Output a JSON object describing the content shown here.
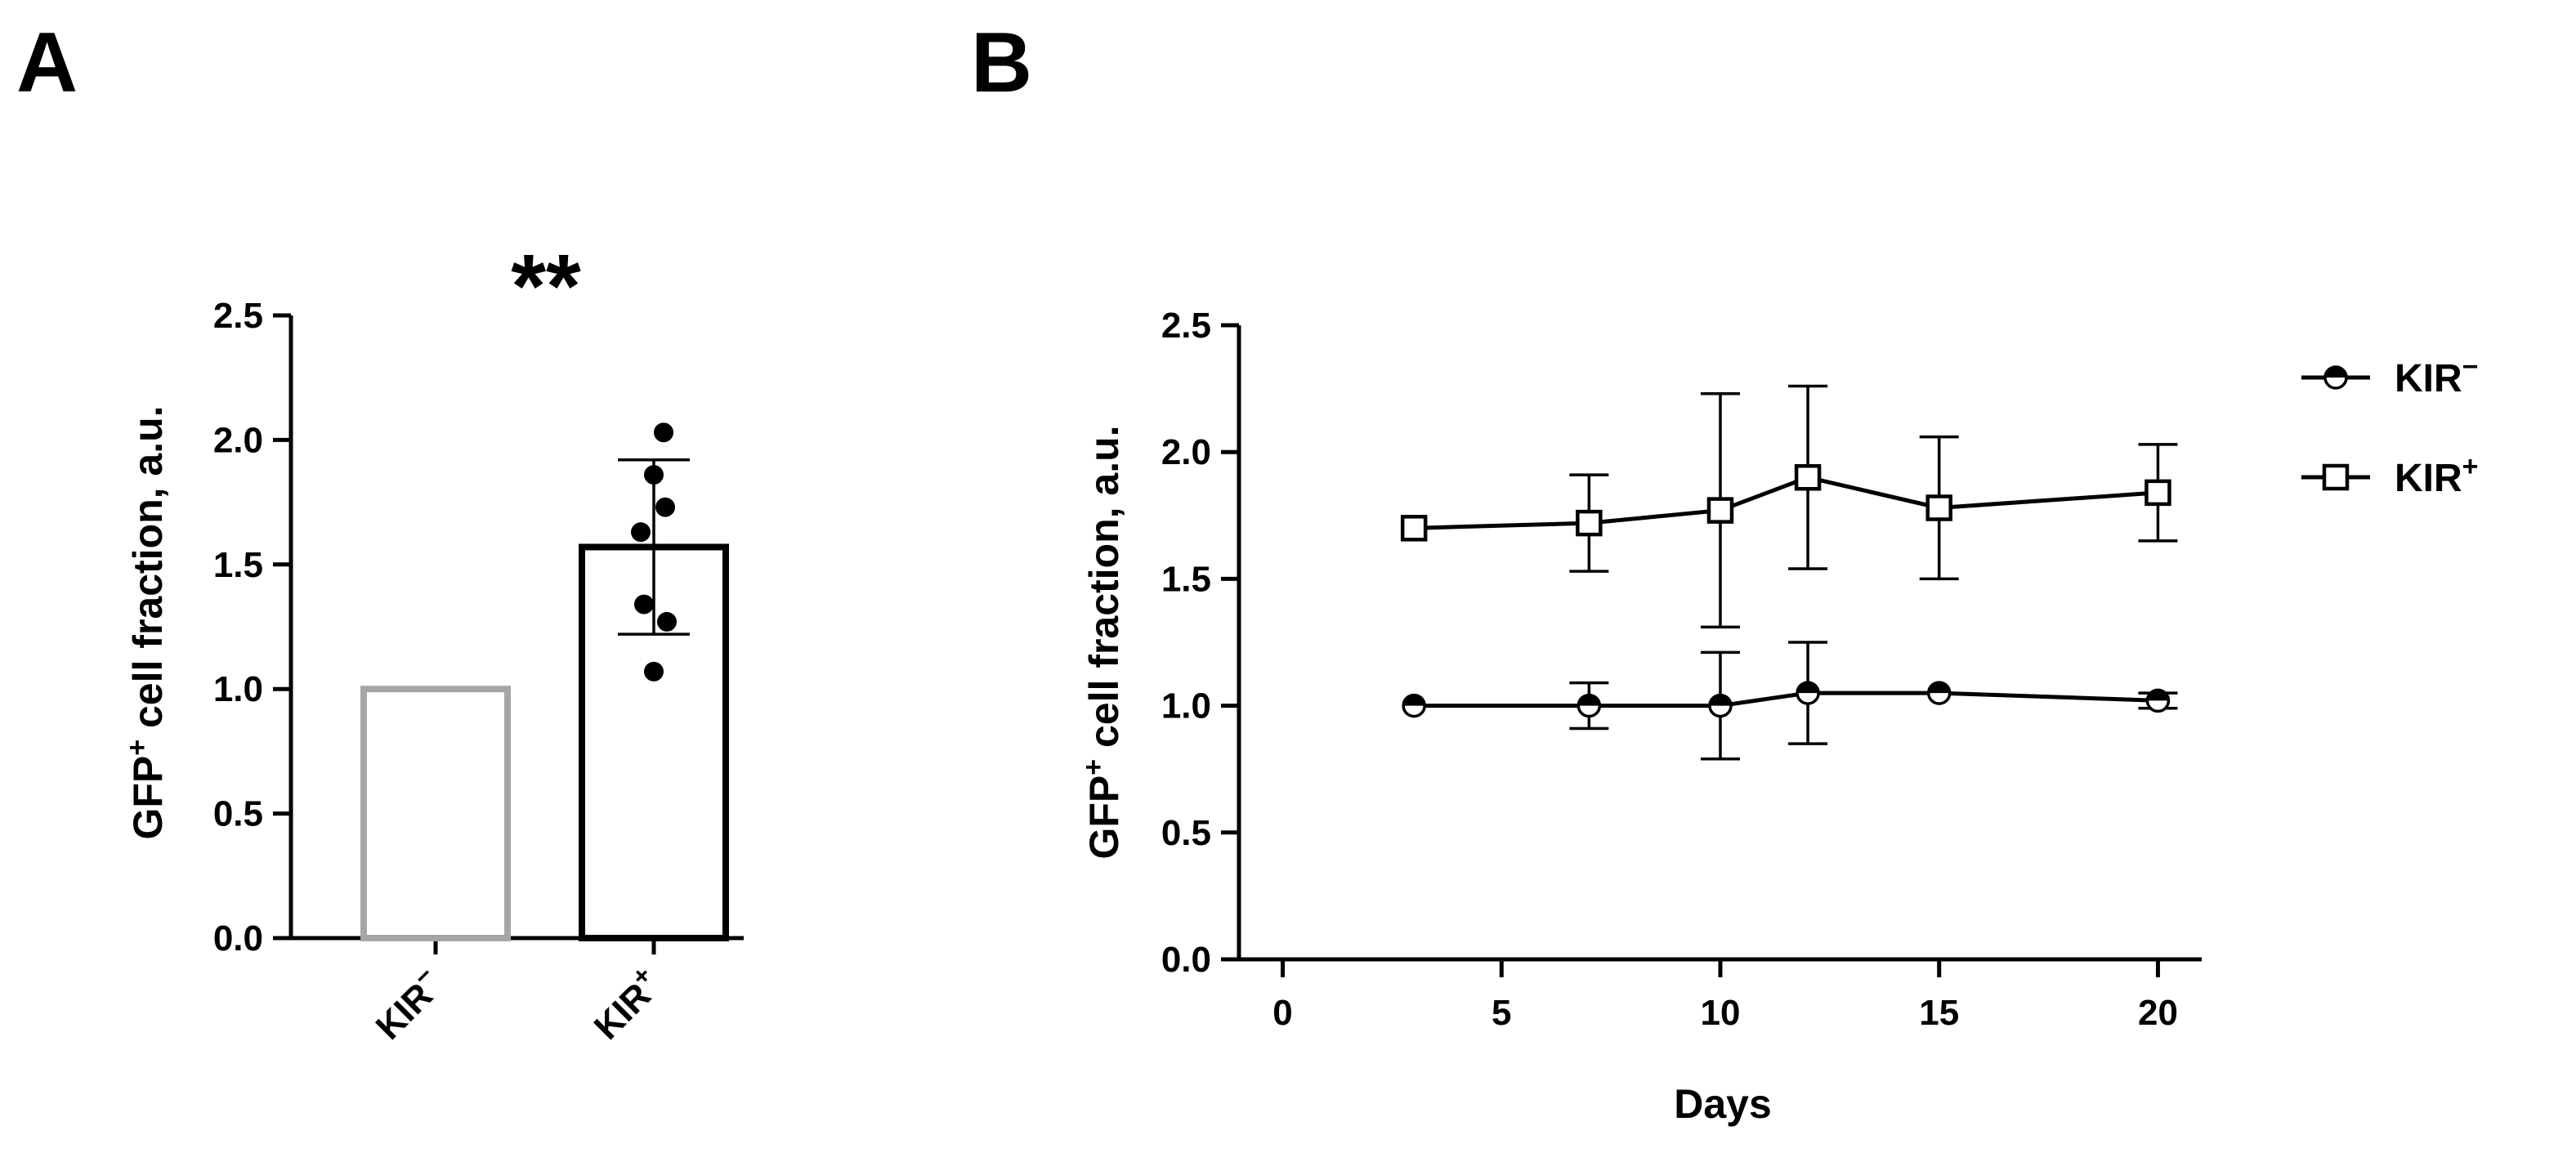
{
  "panels": {
    "a_label": "A",
    "b_label": "B"
  },
  "chart_data": [
    {
      "type": "bar",
      "panel": "A",
      "title": "",
      "ylabel": "GFP",
      "ylabel_sup": "+",
      "ylabel_rest": " cell fraction, a.u.",
      "ylim": [
        0,
        2.5
      ],
      "yticks": [
        "0.0",
        "0.5",
        "1.0",
        "1.5",
        "2.0",
        "2.5"
      ],
      "categories": [
        {
          "base": "KIR",
          "sup": "−"
        },
        {
          "base": "KIR",
          "sup": "+"
        }
      ],
      "values": [
        1.0,
        1.57
      ],
      "error": [
        null,
        0.35
      ],
      "edge_colors": [
        "#a6a6a6",
        "#000000"
      ],
      "points": [
        [],
        [
          2.03,
          1.86,
          1.73,
          1.63,
          1.34,
          1.27,
          1.07
        ]
      ],
      "significance": "**"
    },
    {
      "type": "line",
      "panel": "B",
      "xlabel": "Days",
      "ylabel": "GFP",
      "ylabel_sup": "+",
      "ylabel_rest": " cell fraction, a.u.",
      "xlim": [
        -1,
        21
      ],
      "ylim": [
        0,
        2.5
      ],
      "xticks": [
        "0",
        "5",
        "10",
        "15",
        "20"
      ],
      "yticks": [
        "0.0",
        "0.5",
        "1.0",
        "1.5",
        "2.0",
        "2.5"
      ],
      "legend_position": "right",
      "x": [
        3,
        7,
        10,
        12,
        15,
        20
      ],
      "series": [
        {
          "name": "KIR",
          "name_sup": "−",
          "marker": "half-filled-circle",
          "values": [
            1.0,
            1.0,
            1.0,
            1.05,
            1.05,
            1.02
          ],
          "errors": [
            0,
            0.09,
            0.21,
            0.2,
            0,
            0.03
          ]
        },
        {
          "name": "KIR",
          "name_sup": "+",
          "marker": "open-square",
          "values": [
            1.7,
            1.72,
            1.77,
            1.9,
            1.78,
            1.84
          ],
          "errors": [
            0,
            0.19,
            0.46,
            0.36,
            0.28,
            0.19
          ]
        }
      ]
    }
  ]
}
